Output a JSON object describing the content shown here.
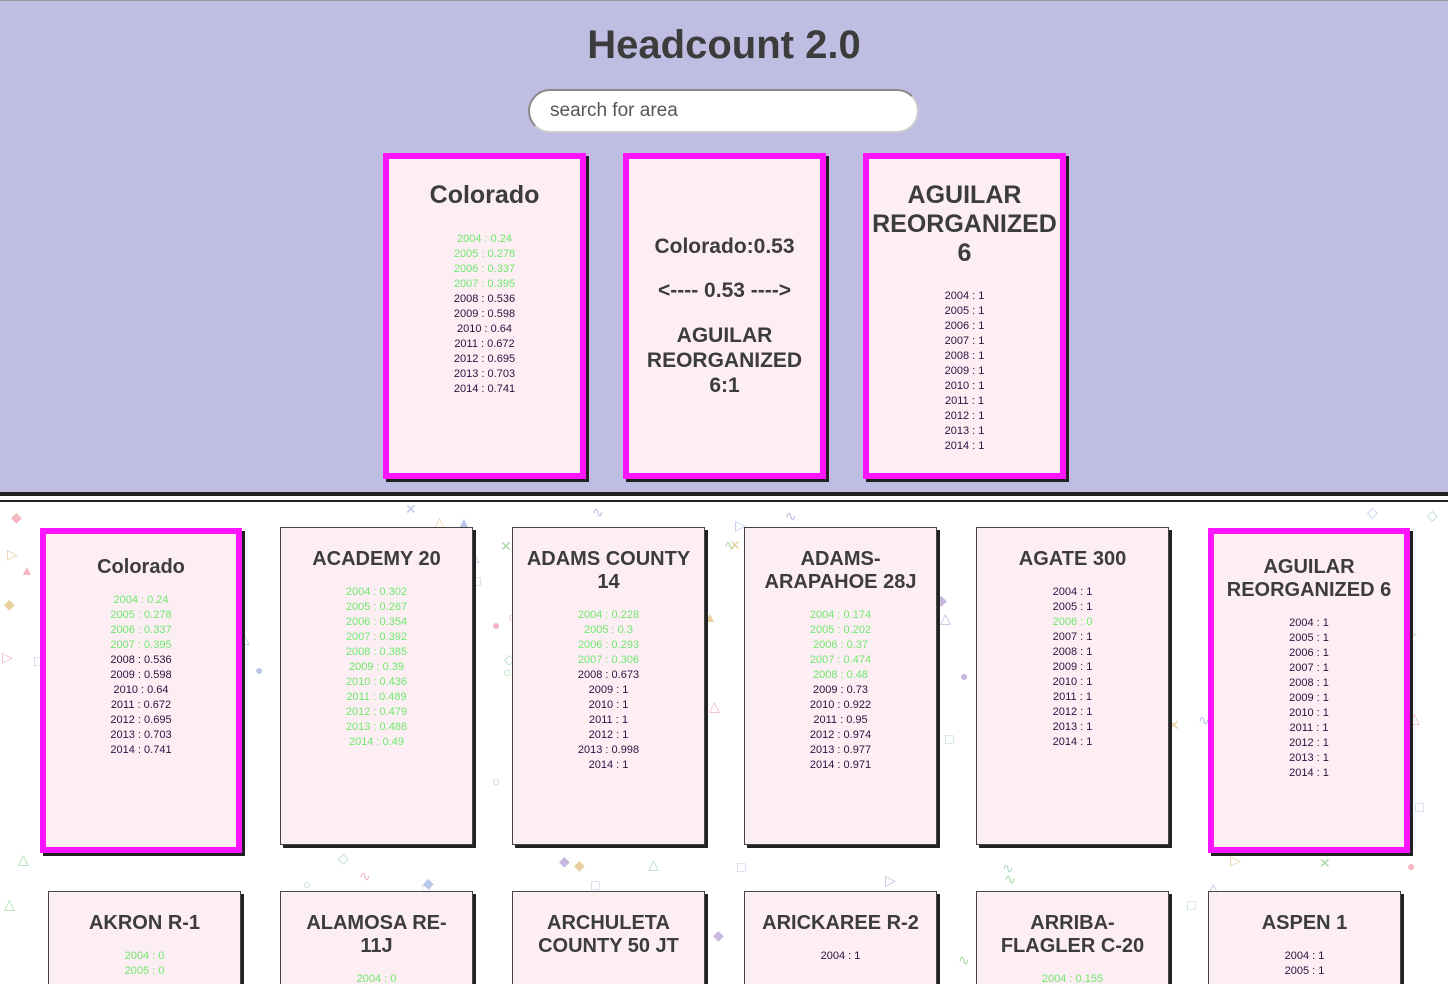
{
  "app": {
    "title": "Headcount 2.0"
  },
  "search": {
    "placeholder": "search for area"
  },
  "compare": {
    "left": {
      "name": "Colorado",
      "rows": [
        {
          "text": "2004 : 0.24",
          "hi": true
        },
        {
          "text": "2005 : 0.278",
          "hi": true
        },
        {
          "text": "2006 : 0.337",
          "hi": true
        },
        {
          "text": "2007 : 0.395",
          "hi": true
        },
        {
          "text": "2008 : 0.536",
          "hi": false
        },
        {
          "text": "2009 : 0.598",
          "hi": false
        },
        {
          "text": "2010 : 0.64",
          "hi": false
        },
        {
          "text": "2011 : 0.672",
          "hi": false
        },
        {
          "text": "2012 : 0.695",
          "hi": false
        },
        {
          "text": "2013 : 0.703",
          "hi": false
        },
        {
          "text": "2014 : 0.741",
          "hi": false
        }
      ]
    },
    "middle": {
      "first": "Colorado:0.53",
      "arrow": "<---- 0.53 ---->",
      "second": "AGUILAR REORGANIZED 6:1"
    },
    "right": {
      "name": "AGUILAR REORGANIZED 6",
      "rows": [
        {
          "text": "2004 : 1",
          "hi": false
        },
        {
          "text": "2005 : 1",
          "hi": false
        },
        {
          "text": "2006 : 1",
          "hi": false
        },
        {
          "text": "2007 : 1",
          "hi": false
        },
        {
          "text": "2008 : 1",
          "hi": false
        },
        {
          "text": "2009 : 1",
          "hi": false
        },
        {
          "text": "2010 : 1",
          "hi": false
        },
        {
          "text": "2011 : 1",
          "hi": false
        },
        {
          "text": "2012 : 1",
          "hi": false
        },
        {
          "text": "2013 : 1",
          "hi": false
        },
        {
          "text": "2014 : 1",
          "hi": false
        }
      ]
    }
  },
  "cards": [
    {
      "name": "Colorado",
      "selected": true,
      "rows": [
        {
          "text": "2004 : 0.24",
          "hi": true
        },
        {
          "text": "2005 : 0.278",
          "hi": true
        },
        {
          "text": "2006 : 0.337",
          "hi": true
        },
        {
          "text": "2007 : 0.395",
          "hi": true
        },
        {
          "text": "2008 : 0.536",
          "hi": false
        },
        {
          "text": "2009 : 0.598",
          "hi": false
        },
        {
          "text": "2010 : 0.64",
          "hi": false
        },
        {
          "text": "2011 : 0.672",
          "hi": false
        },
        {
          "text": "2012 : 0.695",
          "hi": false
        },
        {
          "text": "2013 : 0.703",
          "hi": false
        },
        {
          "text": "2014 : 0.741",
          "hi": false
        }
      ]
    },
    {
      "name": "ACADEMY 20",
      "selected": false,
      "rows": [
        {
          "text": "2004 : 0.302",
          "hi": true
        },
        {
          "text": "2005 : 0.267",
          "hi": true
        },
        {
          "text": "2006 : 0.354",
          "hi": true
        },
        {
          "text": "2007 : 0.392",
          "hi": true
        },
        {
          "text": "2008 : 0.385",
          "hi": true
        },
        {
          "text": "2009 : 0.39",
          "hi": true
        },
        {
          "text": "2010 : 0.436",
          "hi": true
        },
        {
          "text": "2011 : 0.489",
          "hi": true
        },
        {
          "text": "2012 : 0.479",
          "hi": true
        },
        {
          "text": "2013 : 0.488",
          "hi": true
        },
        {
          "text": "2014 : 0.49",
          "hi": true
        }
      ]
    },
    {
      "name": "ADAMS COUNTY 14",
      "selected": false,
      "rows": [
        {
          "text": "2004 : 0.228",
          "hi": true
        },
        {
          "text": "2005 : 0.3",
          "hi": true
        },
        {
          "text": "2006 : 0.293",
          "hi": true
        },
        {
          "text": "2007 : 0.306",
          "hi": true
        },
        {
          "text": "2008 : 0.673",
          "hi": false
        },
        {
          "text": "2009 : 1",
          "hi": false
        },
        {
          "text": "2010 : 1",
          "hi": false
        },
        {
          "text": "2011 : 1",
          "hi": false
        },
        {
          "text": "2012 : 1",
          "hi": false
        },
        {
          "text": "2013 : 0.998",
          "hi": false
        },
        {
          "text": "2014 : 1",
          "hi": false
        }
      ]
    },
    {
      "name": "ADAMS-ARAPAHOE 28J",
      "selected": false,
      "rows": [
        {
          "text": "2004 : 0.174",
          "hi": true
        },
        {
          "text": "2005 : 0.202",
          "hi": true
        },
        {
          "text": "2006 : 0.37",
          "hi": true
        },
        {
          "text": "2007 : 0.474",
          "hi": true
        },
        {
          "text": "2008 : 0.48",
          "hi": true
        },
        {
          "text": "2009 : 0.73",
          "hi": false
        },
        {
          "text": "2010 : 0.922",
          "hi": false
        },
        {
          "text": "2011 : 0.95",
          "hi": false
        },
        {
          "text": "2012 : 0.974",
          "hi": false
        },
        {
          "text": "2013 : 0.977",
          "hi": false
        },
        {
          "text": "2014 : 0.971",
          "hi": false
        }
      ]
    },
    {
      "name": "AGATE 300",
      "selected": false,
      "rows": [
        {
          "text": "2004 : 1",
          "hi": false
        },
        {
          "text": "2005 : 1",
          "hi": false
        },
        {
          "text": "2006 : 0",
          "hi": true
        },
        {
          "text": "2007 : 1",
          "hi": false
        },
        {
          "text": "2008 : 1",
          "hi": false
        },
        {
          "text": "2009 : 1",
          "hi": false
        },
        {
          "text": "2010 : 1",
          "hi": false
        },
        {
          "text": "2011 : 1",
          "hi": false
        },
        {
          "text": "2012 : 1",
          "hi": false
        },
        {
          "text": "2013 : 1",
          "hi": false
        },
        {
          "text": "2014 : 1",
          "hi": false
        }
      ]
    },
    {
      "name": "AGUILAR REORGANIZED 6",
      "selected": true,
      "rows": [
        {
          "text": "2004 : 1",
          "hi": false
        },
        {
          "text": "2005 : 1",
          "hi": false
        },
        {
          "text": "2006 : 1",
          "hi": false
        },
        {
          "text": "2007 : 1",
          "hi": false
        },
        {
          "text": "2008 : 1",
          "hi": false
        },
        {
          "text": "2009 : 1",
          "hi": false
        },
        {
          "text": "2010 : 1",
          "hi": false
        },
        {
          "text": "2011 : 1",
          "hi": false
        },
        {
          "text": "2012 : 1",
          "hi": false
        },
        {
          "text": "2013 : 1",
          "hi": false
        },
        {
          "text": "2014 : 1",
          "hi": false
        }
      ]
    },
    {
      "name": "AKRON R-1",
      "selected": false,
      "rows": [
        {
          "text": "2004 : 0",
          "hi": true
        },
        {
          "text": "2005 : 0",
          "hi": true
        }
      ]
    },
    {
      "name": "ALAMOSA RE-11J",
      "selected": false,
      "rows": [
        {
          "text": "2004 : 0",
          "hi": true
        }
      ]
    },
    {
      "name": "ARCHULETA COUNTY 50 JT",
      "selected": false,
      "rows": []
    },
    {
      "name": "ARICKAREE R-2",
      "selected": false,
      "rows": [
        {
          "text": "2004 : 1",
          "hi": false
        }
      ]
    },
    {
      "name": "ARRIBA-FLAGLER C-20",
      "selected": false,
      "rows": [
        {
          "text": "2004 : 0.155",
          "hi": true
        }
      ]
    },
    {
      "name": "ASPEN 1",
      "selected": false,
      "rows": [
        {
          "text": "2004 : 1",
          "hi": false
        },
        {
          "text": "2005 : 1",
          "hi": false
        }
      ]
    }
  ],
  "colors": {
    "header_bg": "#c0bde3",
    "card_bg": "#fdeef4",
    "selected_border": "#ff14ff",
    "high_value": "#6ee86e",
    "low_value": "#2c1040"
  }
}
